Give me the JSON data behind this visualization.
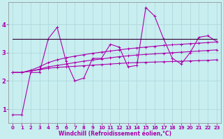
{
  "xlabel": "Windchill (Refroidissement éolien,°C)",
  "bg_color": "#c8eef0",
  "grid_color": "#b0d8dc",
  "line_color": "#aa00aa",
  "dark_line_color": "#330033",
  "spine_color": "#888888",
  "xlim": [
    -0.5,
    23.5
  ],
  "ylim": [
    0.5,
    4.8
  ],
  "xticks": [
    0,
    1,
    2,
    3,
    4,
    5,
    6,
    7,
    8,
    9,
    10,
    11,
    12,
    13,
    14,
    15,
    16,
    17,
    18,
    19,
    20,
    21,
    22,
    23
  ],
  "yticks": [
    1,
    2,
    3,
    4
  ],
  "series_jagged": [
    0.8,
    0.8,
    2.3,
    2.3,
    3.5,
    3.9,
    2.7,
    2.0,
    2.1,
    2.8,
    2.8,
    3.3,
    3.2,
    2.5,
    2.55,
    4.6,
    4.3,
    3.5,
    2.8,
    2.6,
    3.0,
    3.55,
    3.6,
    3.4
  ],
  "series_flat": [
    3.5,
    3.5,
    3.5,
    3.5,
    3.5,
    3.5,
    3.5,
    3.5,
    3.5,
    3.5,
    3.5,
    3.5,
    3.5,
    3.5,
    3.5,
    3.5,
    3.5,
    3.5,
    3.5,
    3.5,
    3.5,
    3.5,
    3.5,
    3.5
  ],
  "series_low": [
    2.3,
    2.3,
    2.35,
    2.4,
    2.45,
    2.48,
    2.5,
    2.52,
    2.54,
    2.56,
    2.58,
    2.6,
    2.62,
    2.64,
    2.65,
    2.66,
    2.67,
    2.68,
    2.69,
    2.7,
    2.71,
    2.72,
    2.73,
    2.75
  ],
  "series_mid": [
    2.3,
    2.3,
    2.35,
    2.42,
    2.5,
    2.55,
    2.6,
    2.65,
    2.7,
    2.74,
    2.78,
    2.82,
    2.86,
    2.89,
    2.92,
    2.94,
    2.96,
    2.98,
    3.0,
    3.02,
    3.04,
    3.06,
    3.08,
    3.1
  ],
  "series_high": [
    2.3,
    2.3,
    2.38,
    2.5,
    2.65,
    2.75,
    2.82,
    2.88,
    2.93,
    2.98,
    3.02,
    3.06,
    3.1,
    3.14,
    3.17,
    3.2,
    3.23,
    3.26,
    3.28,
    3.3,
    3.32,
    3.34,
    3.36,
    3.38
  ],
  "marker": "+",
  "markersize": 3.5,
  "linewidth": 0.8,
  "tick_fontsize": 5,
  "xlabel_fontsize": 5.5
}
